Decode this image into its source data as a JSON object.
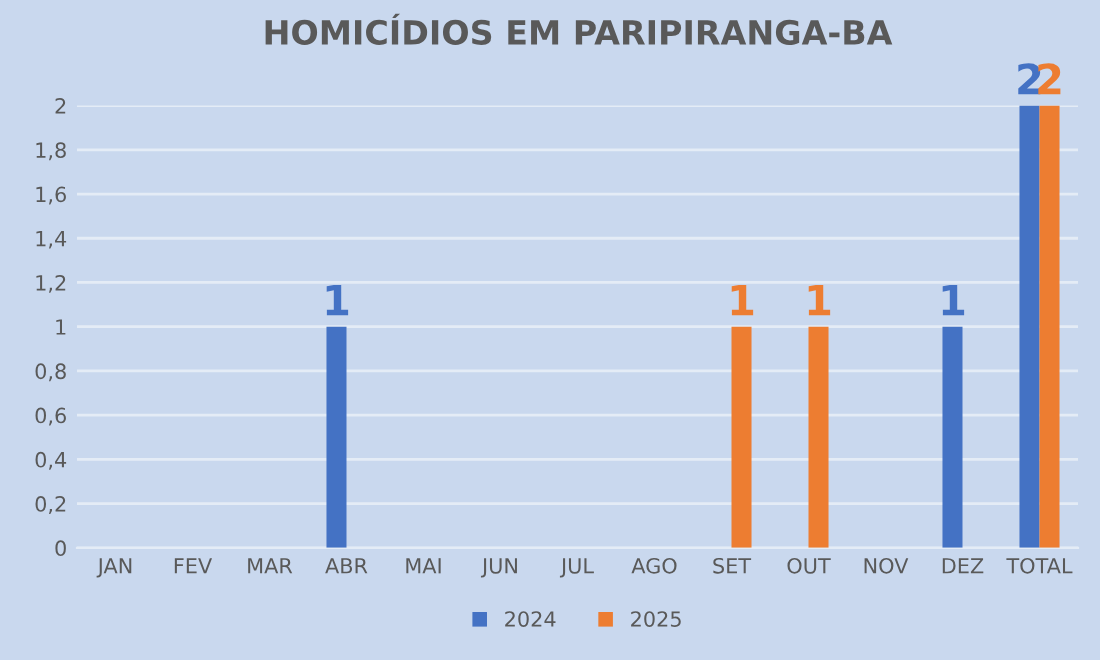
{
  "chart_data": {
    "type": "bar",
    "title": "HOMICÍDIOS EM PARIPIRANGA-BA",
    "categories": [
      "JAN",
      "FEV",
      "MAR",
      "ABR",
      "MAI",
      "JUN",
      "JUL",
      "AGO",
      "SET",
      "OUT",
      "NOV",
      "DEZ",
      "TOTAL"
    ],
    "series": [
      {
        "name": "2024",
        "color": "#4472c4",
        "values": [
          0,
          0,
          0,
          1,
          0,
          0,
          0,
          0,
          0,
          0,
          0,
          1,
          2
        ],
        "value_labels": [
          null,
          null,
          null,
          "1",
          null,
          null,
          null,
          null,
          null,
          null,
          null,
          "1",
          "2"
        ]
      },
      {
        "name": "2025",
        "color": "#ed7d31",
        "values": [
          0,
          0,
          0,
          0,
          0,
          0,
          0,
          0,
          1,
          1,
          0,
          0,
          2
        ],
        "value_labels": [
          null,
          null,
          null,
          null,
          null,
          null,
          null,
          null,
          "1",
          "1",
          null,
          null,
          "2"
        ]
      }
    ],
    "ylim": [
      0,
      2
    ],
    "yticks": [
      0,
      {
        "value": 0.2,
        "label": "0,2"
      },
      {
        "value": 0.4,
        "label": "0,4"
      },
      {
        "value": 0.6,
        "label": "0,6"
      },
      {
        "value": 0.8,
        "label": "0,8"
      },
      1,
      {
        "value": 1.2,
        "label": "1,2"
      },
      {
        "value": 1.4,
        "label": "1,4"
      },
      {
        "value": 1.6,
        "label": "1,6"
      },
      {
        "value": 1.8,
        "label": "1,8"
      },
      2
    ],
    "grid": "y",
    "legend": "bottom"
  }
}
